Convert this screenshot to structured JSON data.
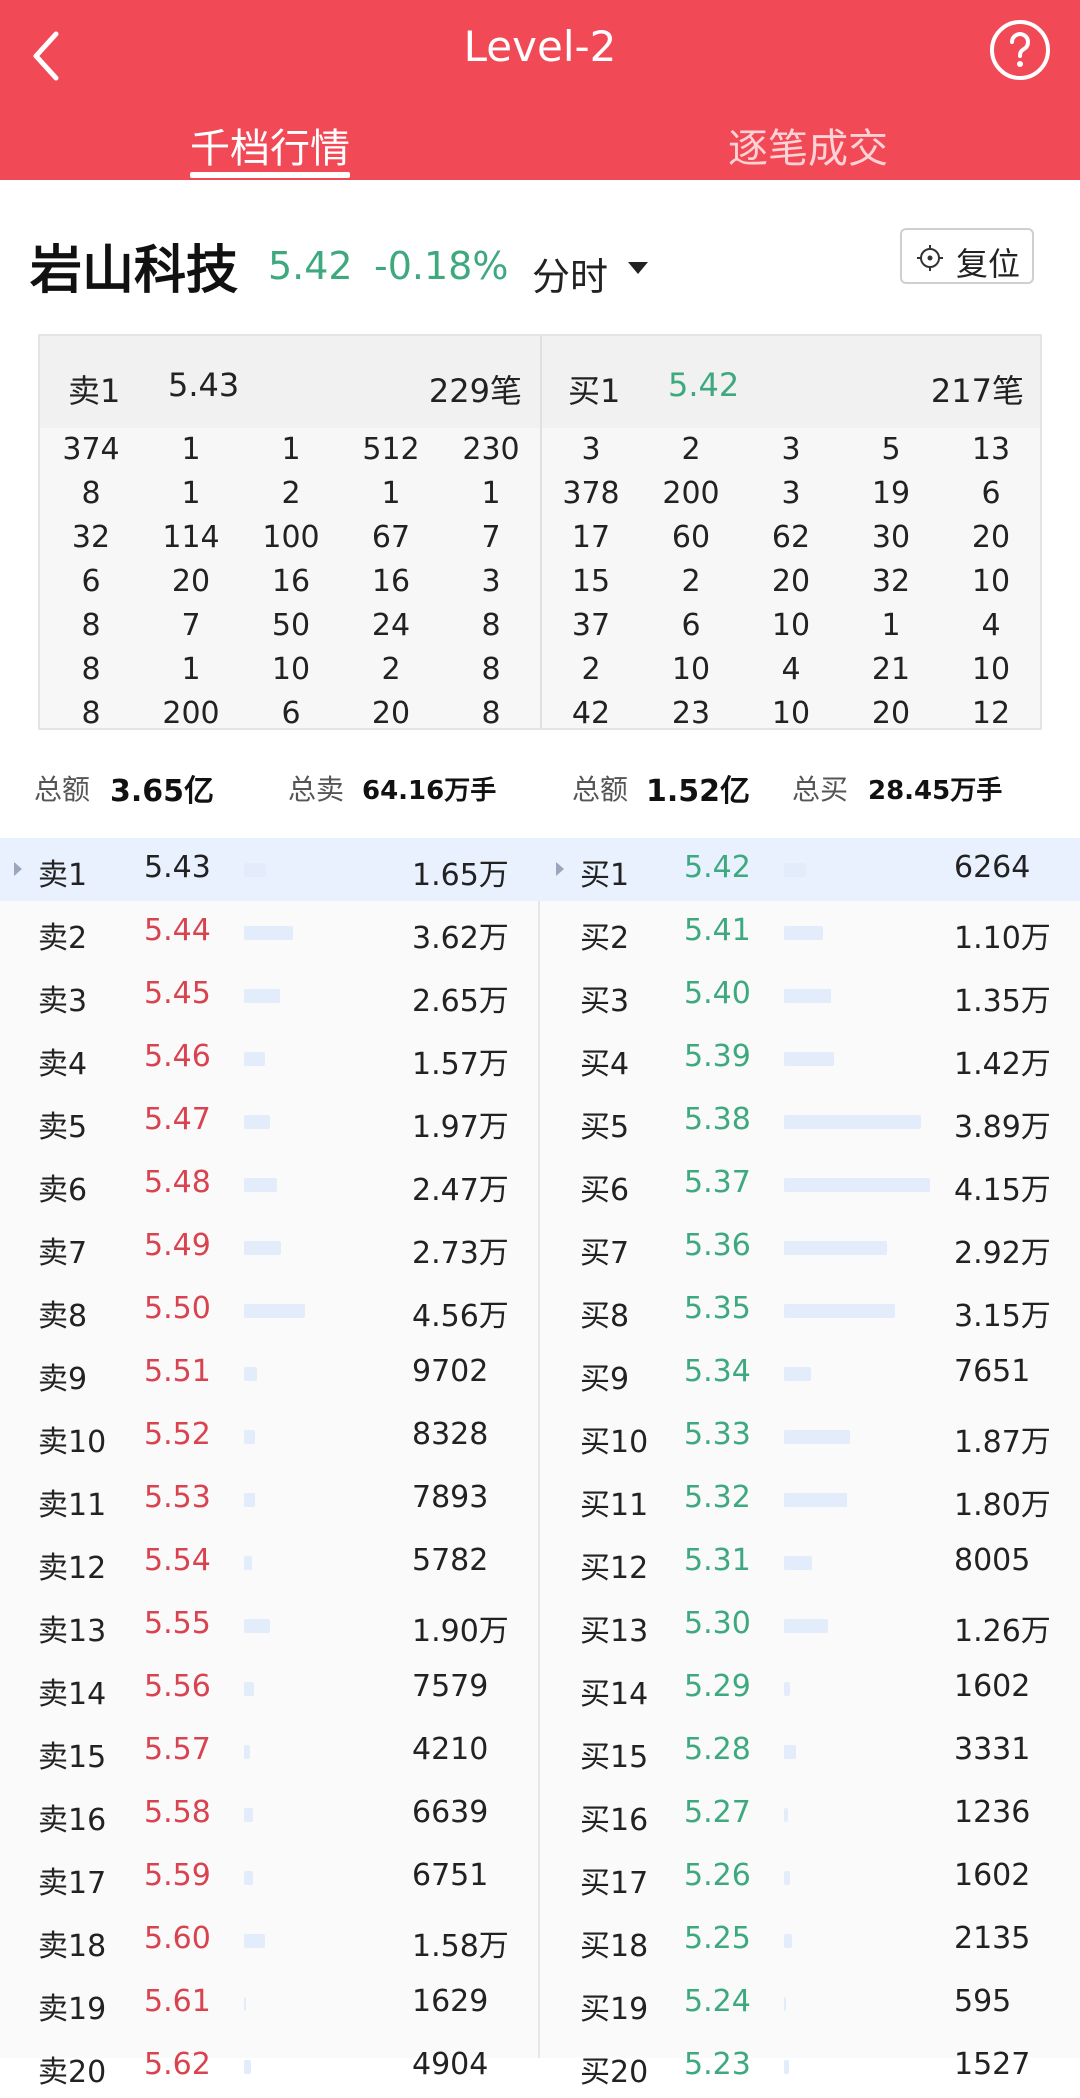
{
  "header": {
    "title": "Level-2",
    "tabs": [
      "千档行情",
      "逐笔成交"
    ]
  },
  "stock": {
    "name": "岩山科技",
    "price": "5.42",
    "change": "-0.18%",
    "mode": "分时",
    "reset_label": "复位"
  },
  "queue": {
    "sell": {
      "label": "卖1",
      "price": "5.43",
      "count": "229笔",
      "rows": [
        [
          "374",
          "1",
          "1",
          "512",
          "230"
        ],
        [
          "8",
          "1",
          "2",
          "1",
          "1"
        ],
        [
          "32",
          "114",
          "100",
          "67",
          "7"
        ],
        [
          "6",
          "20",
          "16",
          "16",
          "3"
        ],
        [
          "8",
          "7",
          "50",
          "24",
          "8"
        ],
        [
          "8",
          "1",
          "10",
          "2",
          "8"
        ],
        [
          "8",
          "200",
          "6",
          "20",
          "8"
        ]
      ]
    },
    "buy": {
      "label": "买1",
      "price": "5.42",
      "count": "217笔",
      "rows": [
        [
          "3",
          "2",
          "3",
          "5",
          "13"
        ],
        [
          "378",
          "200",
          "3",
          "19",
          "6"
        ],
        [
          "17",
          "60",
          "62",
          "30",
          "20"
        ],
        [
          "15",
          "2",
          "20",
          "32",
          "10"
        ],
        [
          "37",
          "6",
          "10",
          "1",
          "4"
        ],
        [
          "2",
          "10",
          "4",
          "21",
          "10"
        ],
        [
          "42",
          "23",
          "10",
          "20",
          "12"
        ]
      ]
    }
  },
  "totals": {
    "sell_amount_label": "总额",
    "sell_amount": "3.65亿",
    "sell_vol_label": "总卖",
    "sell_vol": "64.16万手",
    "buy_amount_label": "总额",
    "buy_amount": "1.52亿",
    "buy_vol_label": "总买",
    "buy_vol": "28.45万手"
  },
  "depth": {
    "sell": [
      {
        "label": "卖1",
        "price": "5.43",
        "vol": "1.65万",
        "qty": 16500
      },
      {
        "label": "卖2",
        "price": "5.44",
        "vol": "3.62万",
        "qty": 36200
      },
      {
        "label": "卖3",
        "price": "5.45",
        "vol": "2.65万",
        "qty": 26500
      },
      {
        "label": "卖4",
        "price": "5.46",
        "vol": "1.57万",
        "qty": 15700
      },
      {
        "label": "卖5",
        "price": "5.47",
        "vol": "1.97万",
        "qty": 19700
      },
      {
        "label": "卖6",
        "price": "5.48",
        "vol": "2.47万",
        "qty": 24700
      },
      {
        "label": "卖7",
        "price": "5.49",
        "vol": "2.73万",
        "qty": 27300
      },
      {
        "label": "卖8",
        "price": "5.50",
        "vol": "4.56万",
        "qty": 45600
      },
      {
        "label": "卖9",
        "price": "5.51",
        "vol": "9702",
        "qty": 9702
      },
      {
        "label": "卖10",
        "price": "5.52",
        "vol": "8328",
        "qty": 8328
      },
      {
        "label": "卖11",
        "price": "5.53",
        "vol": "7893",
        "qty": 7893
      },
      {
        "label": "卖12",
        "price": "5.54",
        "vol": "5782",
        "qty": 5782
      },
      {
        "label": "卖13",
        "price": "5.55",
        "vol": "1.90万",
        "qty": 19000
      },
      {
        "label": "卖14",
        "price": "5.56",
        "vol": "7579",
        "qty": 7579
      },
      {
        "label": "卖15",
        "price": "5.57",
        "vol": "4210",
        "qty": 4210
      },
      {
        "label": "卖16",
        "price": "5.58",
        "vol": "6639",
        "qty": 6639
      },
      {
        "label": "卖17",
        "price": "5.59",
        "vol": "6751",
        "qty": 6751
      },
      {
        "label": "卖18",
        "price": "5.60",
        "vol": "1.58万",
        "qty": 15800
      },
      {
        "label": "卖19",
        "price": "5.61",
        "vol": "1629",
        "qty": 1629
      },
      {
        "label": "卖20",
        "price": "5.62",
        "vol": "4904",
        "qty": 4904
      }
    ],
    "buy": [
      {
        "label": "买1",
        "price": "5.42",
        "vol": "6264",
        "qty": 6264
      },
      {
        "label": "买2",
        "price": "5.41",
        "vol": "1.10万",
        "qty": 11000
      },
      {
        "label": "买3",
        "price": "5.40",
        "vol": "1.35万",
        "qty": 13500
      },
      {
        "label": "买4",
        "price": "5.39",
        "vol": "1.42万",
        "qty": 14200
      },
      {
        "label": "买5",
        "price": "5.38",
        "vol": "3.89万",
        "qty": 38900
      },
      {
        "label": "买6",
        "price": "5.37",
        "vol": "4.15万",
        "qty": 41500
      },
      {
        "label": "买7",
        "price": "5.36",
        "vol": "2.92万",
        "qty": 29200
      },
      {
        "label": "买8",
        "price": "5.35",
        "vol": "3.15万",
        "qty": 31500
      },
      {
        "label": "买9",
        "price": "5.34",
        "vol": "7651",
        "qty": 7651
      },
      {
        "label": "买10",
        "price": "5.33",
        "vol": "1.87万",
        "qty": 18700
      },
      {
        "label": "买11",
        "price": "5.32",
        "vol": "1.80万",
        "qty": 18000
      },
      {
        "label": "买12",
        "price": "5.31",
        "vol": "8005",
        "qty": 8005
      },
      {
        "label": "买13",
        "price": "5.30",
        "vol": "1.26万",
        "qty": 12600
      },
      {
        "label": "买14",
        "price": "5.29",
        "vol": "1602",
        "qty": 1602
      },
      {
        "label": "买15",
        "price": "5.28",
        "vol": "3331",
        "qty": 3331
      },
      {
        "label": "买16",
        "price": "5.27",
        "vol": "1236",
        "qty": 1236
      },
      {
        "label": "买17",
        "price": "5.26",
        "vol": "1602",
        "qty": 1602
      },
      {
        "label": "买18",
        "price": "5.25",
        "vol": "2135",
        "qty": 2135
      },
      {
        "label": "买19",
        "price": "5.24",
        "vol": "595",
        "qty": 595
      },
      {
        "label": "买20",
        "price": "5.23",
        "vol": "1527",
        "qty": 1527
      }
    ],
    "colors": {
      "up": "#d9434f",
      "down": "#3ea87f",
      "neutral": "#222222",
      "bar": "#e3ecfa",
      "header": "#f24957"
    }
  }
}
